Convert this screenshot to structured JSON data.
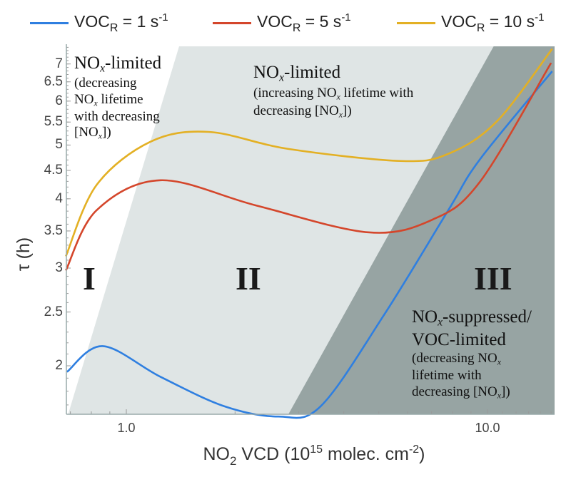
{
  "chart_data": {
    "type": "line",
    "title": "",
    "xlabel": {
      "base": "NO",
      "sub": "2",
      "mid": " VCD (10",
      "sup": "15",
      "tail": " molec. cm",
      "sup2": "-2",
      "end": ")"
    },
    "ylabel": "τ (h)",
    "xscale": "log",
    "yscale": "log",
    "xlim": [
      0.68,
      15.3
    ],
    "ylim": [
      1.64,
      7.5
    ],
    "grid": false,
    "legend_position": "top",
    "x_ticks": [
      "1.0",
      "10.0"
    ],
    "x_tick_values": [
      1.0,
      10.0
    ],
    "y_ticks": [
      "2",
      "2.5",
      "3",
      "3.5",
      "4",
      "4.5",
      "5",
      "5.5",
      "6",
      "6.5",
      "7"
    ],
    "y_tick_values": [
      2,
      2.5,
      3,
      3.5,
      4,
      4.5,
      5,
      5.5,
      6,
      6.5,
      7
    ],
    "series": [
      {
        "name": {
          "pre": "VOC",
          "sub": "R",
          "mid": " = 1 s",
          "sup": "-1"
        },
        "color": "#2f7fe0",
        "x": [
          0.685,
          0.86,
          1.244,
          1.87,
          2.64,
          3.45,
          5.17,
          7.78,
          9.55,
          15.1
        ],
        "y": [
          1.95,
          2.17,
          1.91,
          1.69,
          1.62,
          1.69,
          2.47,
          3.81,
          4.72,
          6.79
        ]
      },
      {
        "name": {
          "pre": "VOC",
          "sub": "R",
          "mid": " = 5 s",
          "sup": "-1"
        },
        "color": "#d4462b",
        "x": [
          0.68,
          0.826,
          1.244,
          2.29,
          4.67,
          7.05,
          9.55,
          15.0
        ],
        "y": [
          2.97,
          3.81,
          4.32,
          3.89,
          3.48,
          3.67,
          4.3,
          7.03
        ]
      },
      {
        "name": {
          "pre": "VOC",
          "sub": "R",
          "mid": " = 10 s",
          "sup": "-1"
        },
        "color": "#e3b024",
        "x": [
          0.68,
          0.826,
          1.167,
          1.69,
          2.81,
          5.74,
          7.78,
          10.6,
          15.1
        ],
        "y": [
          3.15,
          4.23,
          5.07,
          5.28,
          4.92,
          4.68,
          4.82,
          5.51,
          7.45
        ]
      }
    ],
    "regions": [
      {
        "label": "I",
        "color": "#ffffff"
      },
      {
        "label": "II",
        "color": "#dfe5e5",
        "boundary_x_bottom": 0.69,
        "boundary_x_top": 1.4
      },
      {
        "label": "III",
        "color": "#97a4a3",
        "boundary_x_bottom": 2.81,
        "boundary_x_top": 10.4
      }
    ],
    "annotations": [
      {
        "lines": [
          {
            "cls": "big",
            "segs": [
              [
                "NO",
                ""
              ],
              [
                "x",
                "sub"
              ],
              [
                "-limited",
                ""
              ]
            ]
          },
          {
            "cls": "sm",
            "segs": [
              [
                "(decreasing",
                ""
              ]
            ]
          },
          {
            "cls": "sm",
            "segs": [
              [
                "NO",
                ""
              ],
              [
                "x",
                "sub"
              ],
              [
                " lifetime",
                ""
              ]
            ]
          },
          {
            "cls": "sm",
            "segs": [
              [
                "with decreasing",
                ""
              ]
            ]
          },
          {
            "cls": "sm",
            "segs": [
              [
                "[NO",
                ""
              ],
              [
                "x",
                "sub"
              ],
              [
                "])",
                ""
              ]
            ]
          }
        ]
      },
      {
        "lines": [
          {
            "cls": "big",
            "segs": [
              [
                "NO",
                ""
              ],
              [
                "x",
                "sub"
              ],
              [
                "-limited",
                ""
              ]
            ]
          },
          {
            "cls": "sm",
            "segs": [
              [
                "(increasing NO",
                ""
              ],
              [
                "x",
                "sub"
              ],
              [
                " lifetime with",
                ""
              ]
            ]
          },
          {
            "cls": "sm",
            "segs": [
              [
                "decreasing [NO",
                ""
              ],
              [
                "x",
                "sub"
              ],
              [
                "])",
                ""
              ]
            ]
          }
        ]
      },
      {
        "lines": [
          {
            "cls": "big",
            "segs": [
              [
                "NO",
                ""
              ],
              [
                "x",
                "sub"
              ],
              [
                "-suppressed/",
                ""
              ]
            ]
          },
          {
            "cls": "big",
            "segs": [
              [
                "VOC-limited",
                ""
              ]
            ]
          },
          {
            "cls": "sm",
            "segs": [
              [
                "(decreasing NO",
                ""
              ],
              [
                "x",
                "sub"
              ]
            ]
          },
          {
            "cls": "sm",
            "segs": [
              [
                "lifetime with",
                ""
              ]
            ]
          },
          {
            "cls": "sm",
            "segs": [
              [
                "decreasing [NO",
                ""
              ],
              [
                "x",
                "sub"
              ],
              [
                "])",
                ""
              ]
            ]
          }
        ]
      }
    ]
  }
}
